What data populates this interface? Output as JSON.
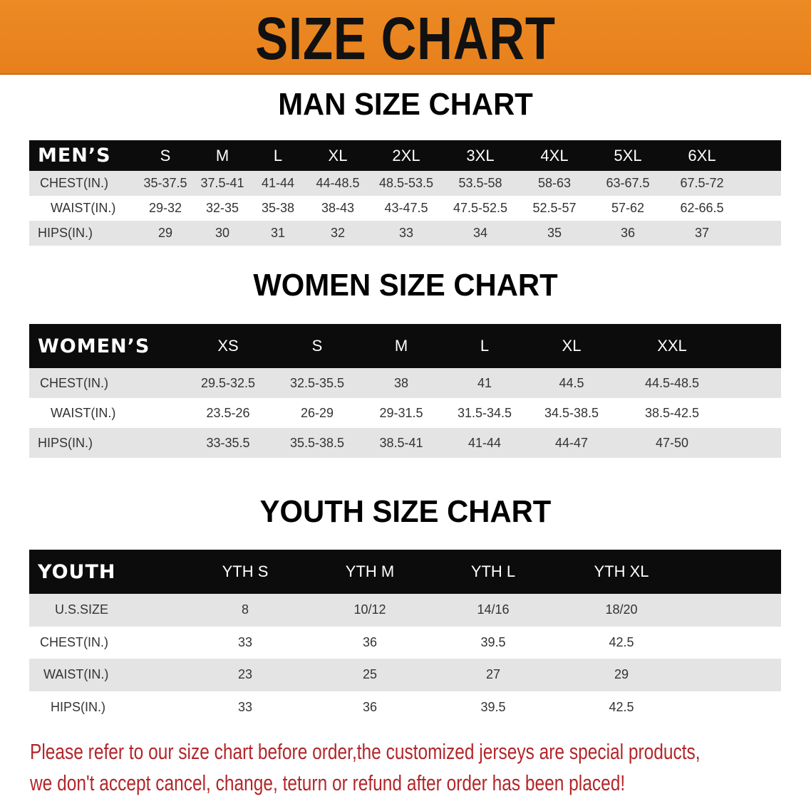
{
  "banner_title": "SIZE CHART",
  "colors": {
    "banner": "#e88420",
    "header_row": "#0c0c0c",
    "note_text": "#b3262a"
  },
  "men": {
    "title": "MAN SIZE CHART",
    "header": [
      "MEN’S",
      "S",
      "M",
      "L",
      "XL",
      "2XL",
      "3XL",
      "4XL",
      "5XL",
      "6XL"
    ],
    "rows": [
      [
        "CHEST(IN.)",
        "35-37.5",
        "37.5-41",
        "41-44",
        "44-48.5",
        "48.5-53.5",
        "53.5-58",
        "58-63",
        "63-67.5",
        "67.5-72"
      ],
      [
        "WAIST(IN.)",
        "29-32",
        "32-35",
        "35-38",
        "38-43",
        "43-47.5",
        "47.5-52.5",
        "52.5-57",
        "57-62",
        "62-66.5"
      ],
      [
        "HIPS(IN.)",
        "29",
        "30",
        "31",
        "32",
        "33",
        "34",
        "35",
        "36",
        "37"
      ]
    ]
  },
  "women": {
    "title": "WOMEN SIZE CHART",
    "header": [
      "WOMEN’S",
      "XS",
      "S",
      "M",
      "L",
      "XL",
      "XXL"
    ],
    "rows": [
      [
        "CHEST(IN.)",
        "29.5-32.5",
        "32.5-35.5",
        "38",
        "41",
        "44.5",
        "44.5-48.5"
      ],
      [
        "WAIST(IN.)",
        "23.5-26",
        "26-29",
        "29-31.5",
        "31.5-34.5",
        "34.5-38.5",
        "38.5-42.5"
      ],
      [
        "HIPS(IN.)",
        "33-35.5",
        "35.5-38.5",
        "38.5-41",
        "41-44",
        "44-47",
        "47-50"
      ]
    ]
  },
  "youth": {
    "title": "YOUTH SIZE CHART",
    "header": [
      "YOUTH",
      "YTH S",
      "YTH M",
      "YTH L",
      "YTH XL"
    ],
    "rows": [
      [
        "U.S.SIZE",
        "8",
        "10/12",
        "14/16",
        "18/20"
      ],
      [
        "CHEST(IN.)",
        "33",
        "36",
        "39.5",
        "42.5"
      ],
      [
        "WAIST(IN.)",
        "23",
        "25",
        "27",
        "29"
      ],
      [
        "HIPS(IN.)",
        "33",
        "36",
        "39.5",
        "42.5"
      ]
    ]
  },
  "note": {
    "line1": "Please refer to our size chart before order,the customized jerseys are special products,",
    "line2": "we don't accept cancel, change, teturn or refund after order has been placed!"
  }
}
